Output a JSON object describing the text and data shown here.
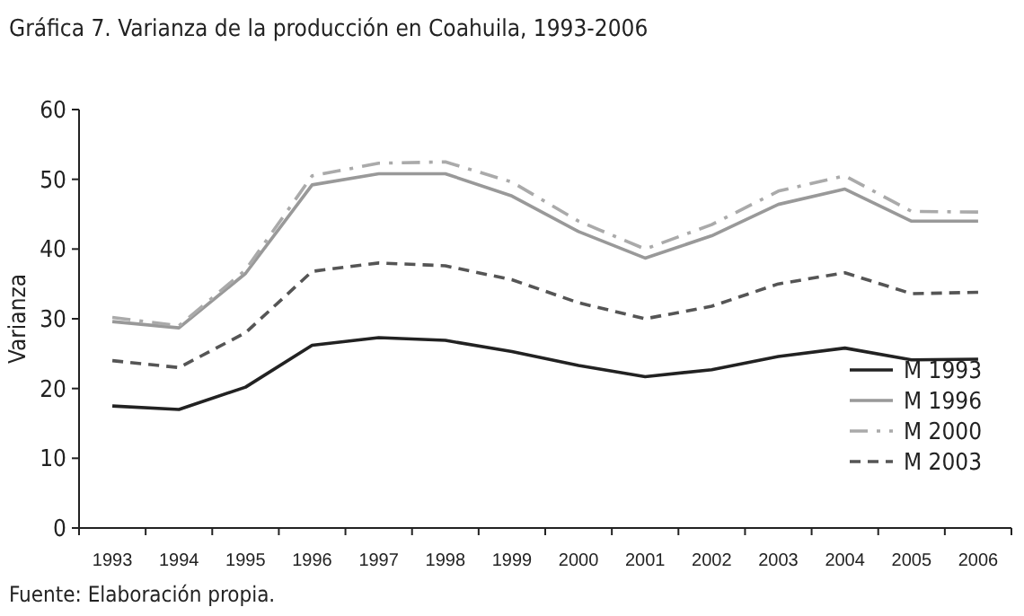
{
  "chart_data": {
    "type": "line",
    "title": "Gráfica 7. Varianza de la producción en Coahuila, 1993-2006",
    "ylabel": "Varianza",
    "categories": [
      "1993",
      "1994",
      "1995",
      "1996",
      "1997",
      "1998",
      "1999",
      "2000",
      "2001",
      "2002",
      "2003",
      "2004",
      "2005",
      "2006"
    ],
    "series": [
      {
        "name": "M 1993",
        "color": "#222222",
        "line_style": "solid",
        "values": [
          17.5,
          17,
          20.2,
          26.2,
          27.3,
          26.9,
          25.3,
          23.3,
          21.7,
          22.7,
          24.6,
          25.8,
          24.1,
          24.2
        ]
      },
      {
        "name": "M 1996",
        "color": "#999999",
        "line_style": "solid",
        "values": [
          29.6,
          28.7,
          36.5,
          49.2,
          50.8,
          50.8,
          47.6,
          42.5,
          38.7,
          41.9,
          46.4,
          48.6,
          44,
          44
        ]
      },
      {
        "name": "M 2000",
        "color": "#aaaaaa",
        "line_style": "dashdot",
        "values": [
          30.2,
          29,
          37,
          50.5,
          52.3,
          52.5,
          49.6,
          44,
          40,
          43.5,
          48.3,
          50.5,
          45.4,
          45.3
        ]
      },
      {
        "name": "M 2003",
        "color": "#555555",
        "line_style": "dashed",
        "values": [
          24,
          23,
          28,
          36.8,
          38,
          37.6,
          35.6,
          32.3,
          30,
          31.8,
          35,
          36.6,
          33.6,
          33.8
        ]
      }
    ],
    "ylim": [
      0,
      60
    ],
    "yticks": [
      0,
      10,
      20,
      30,
      40,
      50,
      60
    ],
    "grid": false,
    "legend": "bottom right",
    "marker": "none",
    "annotations": [
      "Fuente: Elaboración propia."
    ]
  }
}
